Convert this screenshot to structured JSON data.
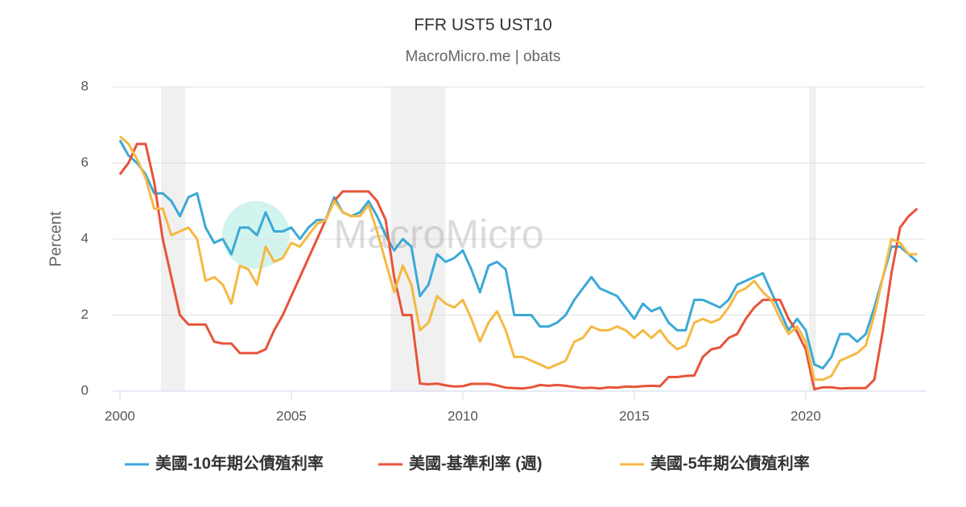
{
  "chart_data": {
    "type": "line",
    "title": "FFR UST5 UST10",
    "subtitle": "MacroMicro.me | obats",
    "watermark": "MacroMicro",
    "y_label": "Percent",
    "xlim": [
      1999.79,
      2023.5
    ],
    "ylim": [
      0,
      8
    ],
    "xticks": [
      2000,
      2005,
      2010,
      2015,
      2020
    ],
    "yticks": [
      0,
      2,
      4,
      6,
      8
    ],
    "grid": true,
    "recessions": [
      [
        2001.2,
        2001.9
      ],
      [
        2007.9,
        2009.5
      ],
      [
        2020.1,
        2020.3
      ]
    ],
    "x": [
      2000,
      2000.25,
      2000.5,
      2000.75,
      2001,
      2001.25,
      2001.5,
      2001.75,
      2002,
      2002.25,
      2002.5,
      2002.75,
      2003,
      2003.25,
      2003.5,
      2003.75,
      2004,
      2004.25,
      2004.5,
      2004.75,
      2005,
      2005.25,
      2005.5,
      2005.75,
      2006,
      2006.25,
      2006.5,
      2006.75,
      2007,
      2007.25,
      2007.5,
      2007.75,
      2008,
      2008.25,
      2008.5,
      2008.75,
      2009,
      2009.25,
      2009.5,
      2009.75,
      2010,
      2010.25,
      2010.5,
      2010.75,
      2011,
      2011.25,
      2011.5,
      2011.75,
      2012,
      2012.25,
      2012.5,
      2012.75,
      2013,
      2013.25,
      2013.5,
      2013.75,
      2014,
      2014.25,
      2014.5,
      2014.75,
      2015,
      2015.25,
      2015.5,
      2015.75,
      2016,
      2016.25,
      2016.5,
      2016.75,
      2017,
      2017.25,
      2017.5,
      2017.75,
      2018,
      2018.25,
      2018.5,
      2018.75,
      2019,
      2019.25,
      2019.5,
      2019.75,
      2020,
      2020.25,
      2020.5,
      2020.75,
      2021,
      2021.25,
      2021.5,
      2021.75,
      2022,
      2022.25,
      2022.5,
      2022.75,
      2023,
      2023.25
    ],
    "series": [
      {
        "name": "美國-10年期公債殖利率",
        "color": "#3ba9d6",
        "values": [
          6.6,
          6.2,
          6.0,
          5.7,
          5.2,
          5.2,
          5.0,
          4.6,
          5.1,
          5.2,
          4.3,
          3.9,
          4.0,
          3.6,
          4.3,
          4.3,
          4.1,
          4.7,
          4.2,
          4.2,
          4.3,
          4.0,
          4.3,
          4.5,
          4.5,
          5.1,
          4.7,
          4.6,
          4.7,
          5.0,
          4.6,
          4.1,
          3.7,
          4.0,
          3.8,
          2.5,
          2.8,
          3.6,
          3.4,
          3.5,
          3.7,
          3.2,
          2.6,
          3.3,
          3.4,
          3.2,
          2.0,
          2.0,
          2.0,
          1.7,
          1.7,
          1.8,
          2.0,
          2.4,
          2.7,
          3.0,
          2.7,
          2.6,
          2.5,
          2.2,
          1.9,
          2.3,
          2.1,
          2.2,
          1.8,
          1.6,
          1.6,
          2.4,
          2.4,
          2.3,
          2.2,
          2.4,
          2.8,
          2.9,
          3.0,
          3.1,
          2.6,
          2.1,
          1.6,
          1.9,
          1.6,
          0.7,
          0.6,
          0.9,
          1.5,
          1.5,
          1.3,
          1.5,
          2.2,
          3.0,
          3.8,
          3.8,
          3.6,
          3.4
        ]
      },
      {
        "name": "美國-基準利率 (週)",
        "color": "#e8533a",
        "values": [
          5.7,
          6.0,
          6.5,
          6.5,
          5.5,
          4.0,
          3.0,
          2.0,
          1.75,
          1.75,
          1.75,
          1.3,
          1.25,
          1.25,
          1.0,
          1.0,
          1.0,
          1.1,
          1.6,
          2.0,
          2.5,
          3.0,
          3.5,
          4.0,
          4.5,
          5.0,
          5.25,
          5.25,
          5.25,
          5.25,
          5.0,
          4.5,
          3.0,
          2.0,
          2.0,
          0.2,
          0.18,
          0.2,
          0.15,
          0.12,
          0.13,
          0.19,
          0.19,
          0.19,
          0.15,
          0.09,
          0.08,
          0.07,
          0.1,
          0.16,
          0.14,
          0.16,
          0.14,
          0.11,
          0.08,
          0.09,
          0.07,
          0.1,
          0.09,
          0.12,
          0.11,
          0.13,
          0.14,
          0.13,
          0.37,
          0.37,
          0.4,
          0.41,
          0.9,
          1.1,
          1.15,
          1.4,
          1.5,
          1.9,
          2.2,
          2.4,
          2.4,
          2.4,
          1.9,
          1.55,
          1.1,
          0.05,
          0.1,
          0.1,
          0.07,
          0.08,
          0.08,
          0.08,
          0.3,
          1.6,
          3.1,
          4.3,
          4.6,
          4.8
        ]
      },
      {
        "name": "美國-5年期公債殖利率",
        "color": "#f5b942",
        "values": [
          6.7,
          6.5,
          6.1,
          5.6,
          4.8,
          4.8,
          4.1,
          4.2,
          4.3,
          4.0,
          2.9,
          3.0,
          2.8,
          2.3,
          3.3,
          3.2,
          2.8,
          3.8,
          3.4,
          3.5,
          3.9,
          3.8,
          4.1,
          4.4,
          4.5,
          5.0,
          4.7,
          4.6,
          4.6,
          4.9,
          4.2,
          3.4,
          2.6,
          3.3,
          2.8,
          1.6,
          1.8,
          2.5,
          2.3,
          2.2,
          2.4,
          1.9,
          1.3,
          1.8,
          2.1,
          1.6,
          0.9,
          0.9,
          0.8,
          0.7,
          0.6,
          0.7,
          0.8,
          1.3,
          1.4,
          1.7,
          1.6,
          1.6,
          1.7,
          1.6,
          1.4,
          1.6,
          1.4,
          1.6,
          1.3,
          1.1,
          1.2,
          1.8,
          1.9,
          1.8,
          1.9,
          2.2,
          2.6,
          2.7,
          2.9,
          2.6,
          2.4,
          1.9,
          1.5,
          1.7,
          1.3,
          0.3,
          0.3,
          0.4,
          0.8,
          0.9,
          1.0,
          1.2,
          2.0,
          3.0,
          4.0,
          3.9,
          3.6,
          3.6
        ]
      }
    ]
  }
}
